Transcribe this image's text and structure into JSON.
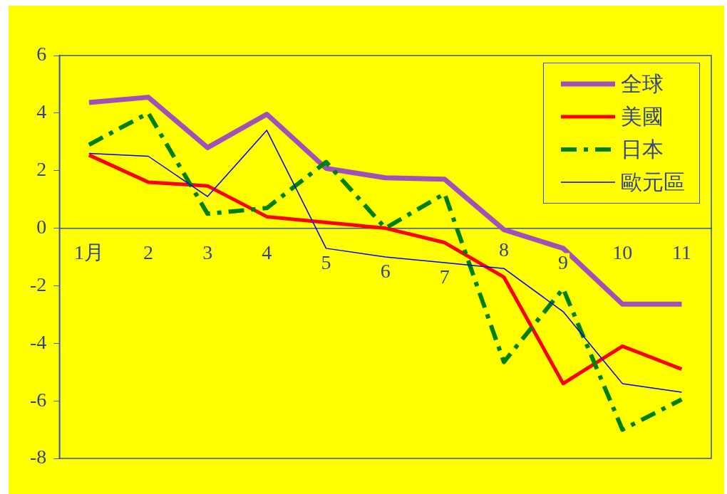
{
  "chart_data": {
    "type": "line",
    "categories": [
      "1月",
      "2",
      "3",
      "4",
      "5",
      "6",
      "7",
      "8",
      "9",
      "10",
      "11"
    ],
    "series": [
      {
        "name": "全球",
        "color": "#a050b8",
        "values": [
          4.37,
          4.55,
          2.8,
          3.96,
          2.08,
          1.75,
          1.7,
          -0.05,
          -0.7,
          -2.64,
          -2.64
        ]
      },
      {
        "name": "美國",
        "color": "#ff0000",
        "values": [
          2.54,
          1.6,
          1.47,
          0.4,
          0.2,
          0,
          -0.5,
          -1.7,
          -5.4,
          -4.1,
          -4.9
        ]
      },
      {
        "name": "日本",
        "color": "#008000",
        "line_style": "dashed",
        "values": [
          2.9,
          4.0,
          0.5,
          0.7,
          2.3,
          0,
          1.2,
          -4.65,
          -2.1,
          -7.0,
          -5.95
        ]
      },
      {
        "name": "歐元區",
        "color": "#0000ff",
        "values": [
          2.6,
          2.5,
          1.1,
          3.4,
          -0.7,
          -1.0,
          -1.2,
          -1.4,
          -2.9,
          -5.4,
          -5.7
        ]
      }
    ],
    "ylim": [
      -8,
      6
    ],
    "yticks": [
      -8,
      -6,
      -4,
      -2,
      0,
      2,
      4,
      6
    ],
    "grid": false,
    "legend": "top right",
    "marker": "none"
  }
}
